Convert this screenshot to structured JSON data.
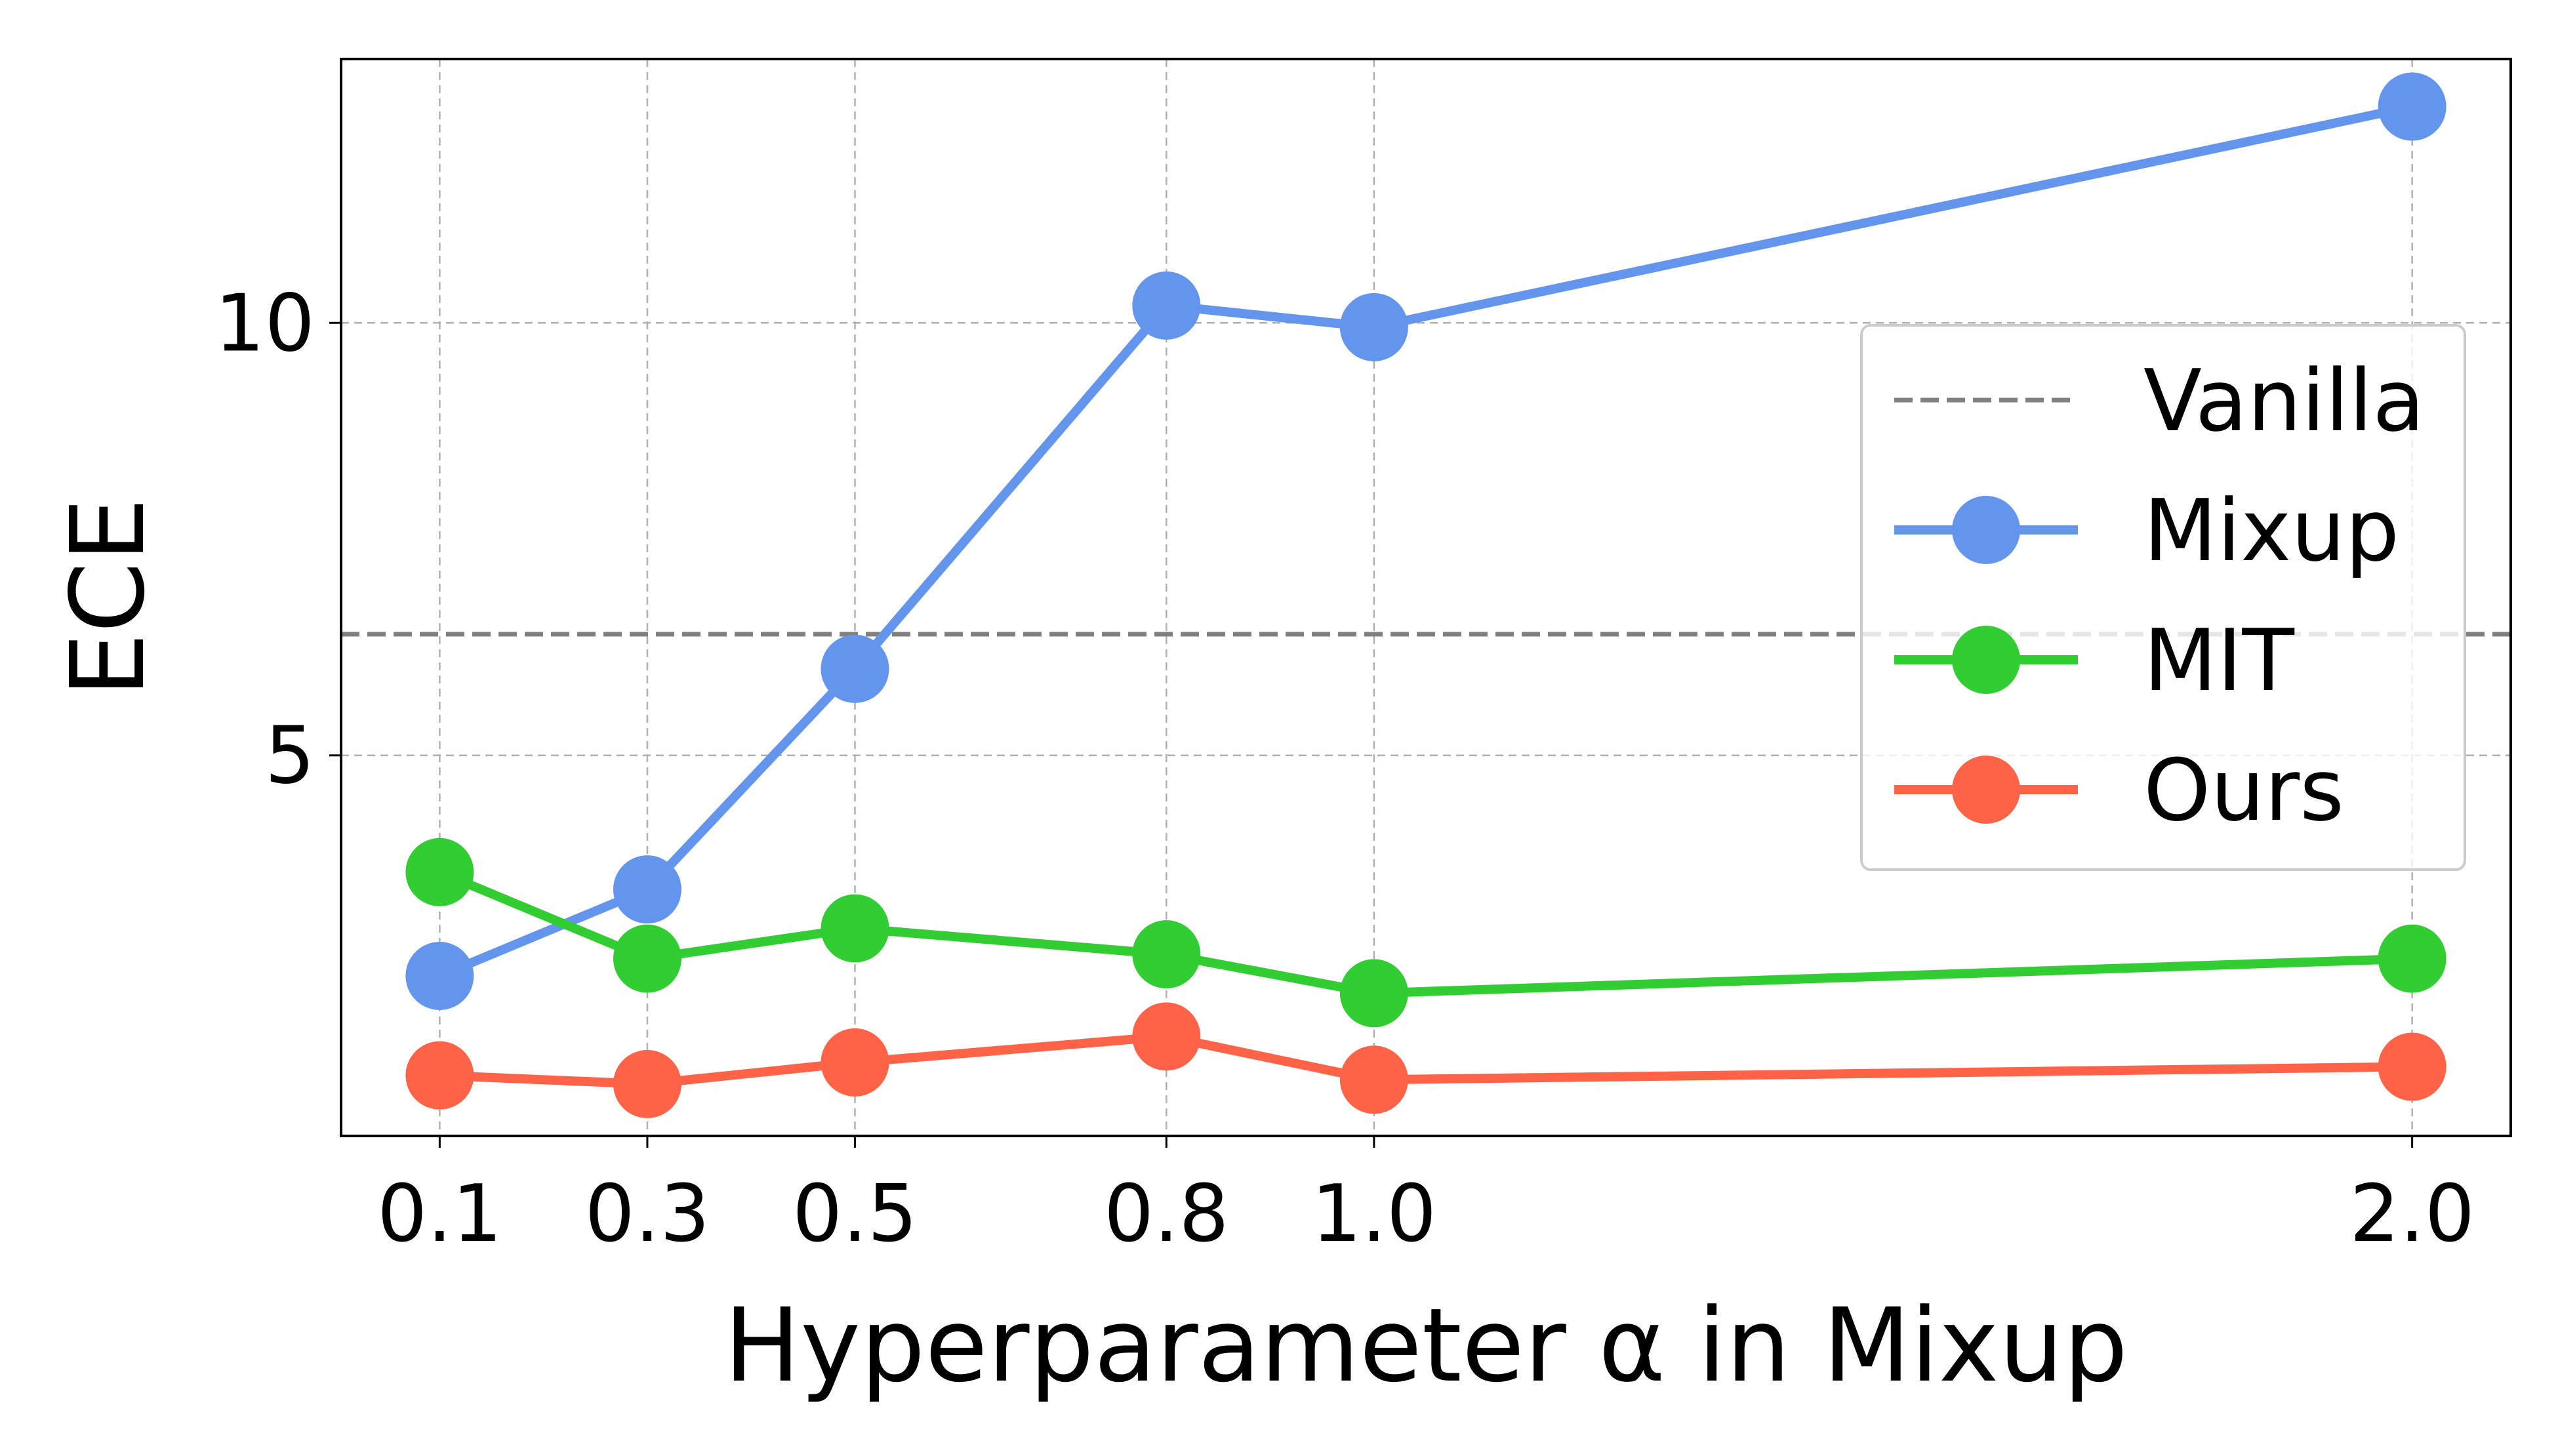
{
  "chart_data": {
    "type": "line",
    "xlabel": "Hyperparameter α in Mixup",
    "ylabel": "ECE",
    "x": [
      0.1,
      0.3,
      0.5,
      0.8,
      1.0,
      2.0
    ],
    "x_tick_labels": [
      "0.1",
      "0.3",
      "0.5",
      "0.8",
      "1.0",
      "2.0"
    ],
    "y_ticks": [
      5,
      10
    ],
    "y_tick_labels": [
      "5",
      "10"
    ],
    "xlim": [
      0.005,
      2.095
    ],
    "ylim": [
      0.6,
      13.05
    ],
    "grid": true,
    "legend_position": "right",
    "reference_lines": [
      {
        "name": "Vanilla",
        "y": 6.4,
        "color": "#808080",
        "style": "dashed"
      }
    ],
    "series": [
      {
        "name": "Mixup",
        "color": "#6495ED",
        "values": [
          2.45,
          3.45,
          6.0,
          10.2,
          9.95,
          12.5
        ]
      },
      {
        "name": "MIT",
        "color": "#32CD32",
        "values": [
          3.65,
          2.65,
          3.0,
          2.7,
          2.25,
          2.65
        ]
      },
      {
        "name": "Ours",
        "color": "#FF6347",
        "values": [
          1.3,
          1.2,
          1.45,
          1.75,
          1.25,
          1.4
        ]
      }
    ]
  }
}
